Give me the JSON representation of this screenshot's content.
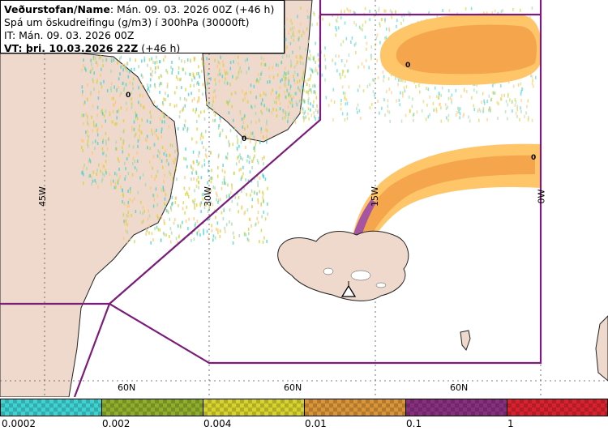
{
  "header": {
    "line1_bold": "Veðurstofan/Name",
    "line1_rest": ": Mán. 09. 03. 2026 00Z (+46 h)",
    "line2": "Spá um öskudreifingu (g/m3) í 300hPa (30000ft)",
    "line3": "IT: Mán. 09. 03. 2026 00Z",
    "line4_bold": "VT: þri. 10.03.2026 22Z",
    "line4_rest": " (+46 h)"
  },
  "graticule": {
    "lon_labels": [
      "45W",
      "30W",
      "15W",
      "0W"
    ],
    "lat_labels": [
      "60N",
      "60N",
      "60N"
    ]
  },
  "contour_labels": [
    "0",
    "0",
    "0",
    "0"
  ],
  "legend": {
    "labels": [
      "0.0002",
      "0.002",
      "0.004",
      "0.01",
      "0.1",
      "1"
    ],
    "colors": [
      "#3fd2d2",
      "#8fae2c",
      "#d6d22e",
      "#d99538",
      "#88307f",
      "#d8222e"
    ]
  },
  "colors": {
    "ash_low": "#ffc569",
    "ash_mid": "#f5a64d",
    "ash_high": "#a656a0",
    "fir_boundary": "#7a1d7a",
    "land": "#eed9cc"
  }
}
